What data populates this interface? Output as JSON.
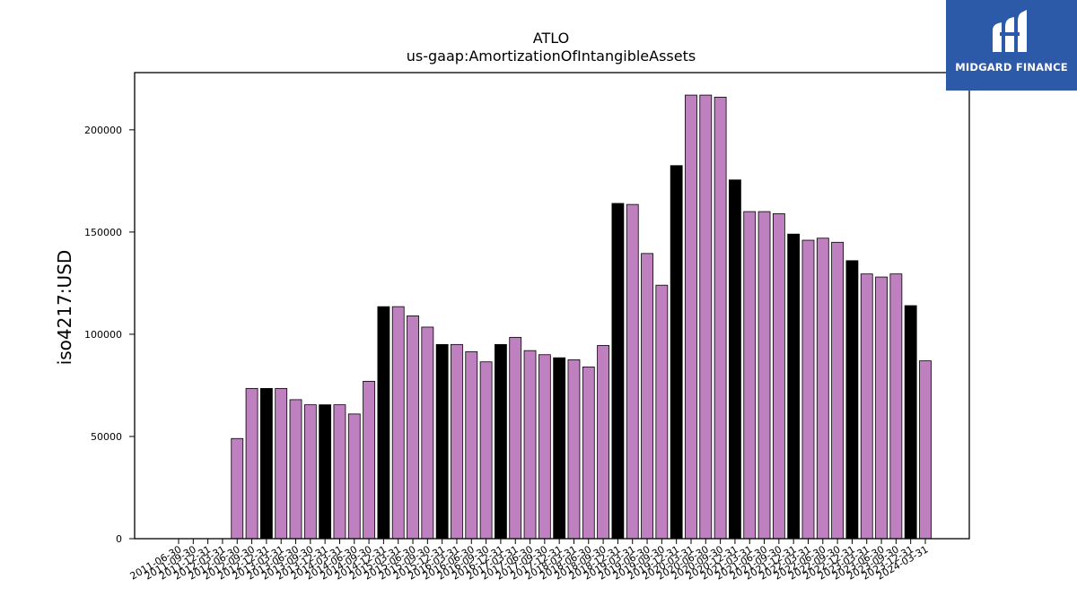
{
  "chart_data": {
    "type": "bar",
    "title": "ATLO",
    "subtitle": "us-gaap:AmortizationOfIntangibleAssets",
    "xlabel": "",
    "ylabel": "iso4217:USD",
    "ylim": [
      0,
      228000
    ],
    "yticks": [
      0,
      50000,
      100000,
      150000,
      200000
    ],
    "ytick_labels": [
      "0",
      "50000",
      "100000",
      "150000",
      "200000"
    ],
    "grid": false,
    "colors": {
      "annual": "#000000",
      "quarterly": "#bf80bf",
      "edge": "#000000"
    },
    "categories": [
      "2011-06-30",
      "2011-09-30",
      "2011-12-31",
      "2012-03-31",
      "2012-06-30",
      "2012-09-30",
      "2012-12-31",
      "2013-03-31",
      "2013-06-30",
      "2013-09-30",
      "2013-12-31",
      "2014-03-31",
      "2014-06-30",
      "2014-09-30",
      "2014-12-31",
      "2015-03-31",
      "2015-06-30",
      "2015-09-30",
      "2015-12-31",
      "2016-03-31",
      "2016-06-30",
      "2016-09-30",
      "2016-12-31",
      "2017-03-31",
      "2017-06-30",
      "2017-09-30",
      "2017-12-31",
      "2018-03-31",
      "2018-06-30",
      "2018-09-30",
      "2018-12-31",
      "2019-03-31",
      "2019-06-30",
      "2019-09-30",
      "2019-12-31",
      "2020-03-31",
      "2020-06-30",
      "2020-09-30",
      "2020-12-31",
      "2021-03-31",
      "2021-06-30",
      "2021-09-30",
      "2021-12-31",
      "2022-03-31",
      "2022-06-30",
      "2022-09-30",
      "2022-12-31",
      "2023-03-31",
      "2023-06-30",
      "2023-09-30",
      "2023-12-31",
      "2024-03-31"
    ],
    "values": [
      null,
      null,
      null,
      null,
      49000,
      73500,
      73500,
      73500,
      68000,
      65500,
      65500,
      65500,
      61000,
      77000,
      113500,
      113500,
      109000,
      103500,
      95000,
      95000,
      91500,
      86500,
      95000,
      98500,
      92000,
      90000,
      88500,
      87500,
      84000,
      94500,
      164000,
      163500,
      139500,
      124000,
      182500,
      217000,
      217000,
      216000,
      175500,
      160000,
      160000,
      159000,
      149000,
      146000,
      147000,
      145000,
      136000,
      129500,
      128000,
      129500,
      114000,
      87000
    ],
    "bar_type": [
      "q",
      "q",
      "q",
      "q",
      "q",
      "q",
      "a",
      "q",
      "q",
      "q",
      "a",
      "q",
      "q",
      "q",
      "a",
      "q",
      "q",
      "q",
      "a",
      "q",
      "q",
      "q",
      "a",
      "q",
      "q",
      "q",
      "a",
      "q",
      "q",
      "q",
      "a",
      "q",
      "q",
      "q",
      "a",
      "q",
      "q",
      "q",
      "a",
      "q",
      "q",
      "q",
      "a",
      "q",
      "q",
      "q",
      "a",
      "q",
      "q",
      "q",
      "a",
      "q"
    ]
  },
  "logo": {
    "text": "MIDGARD FINANCE",
    "icon": "midgard-m-logo-icon"
  }
}
